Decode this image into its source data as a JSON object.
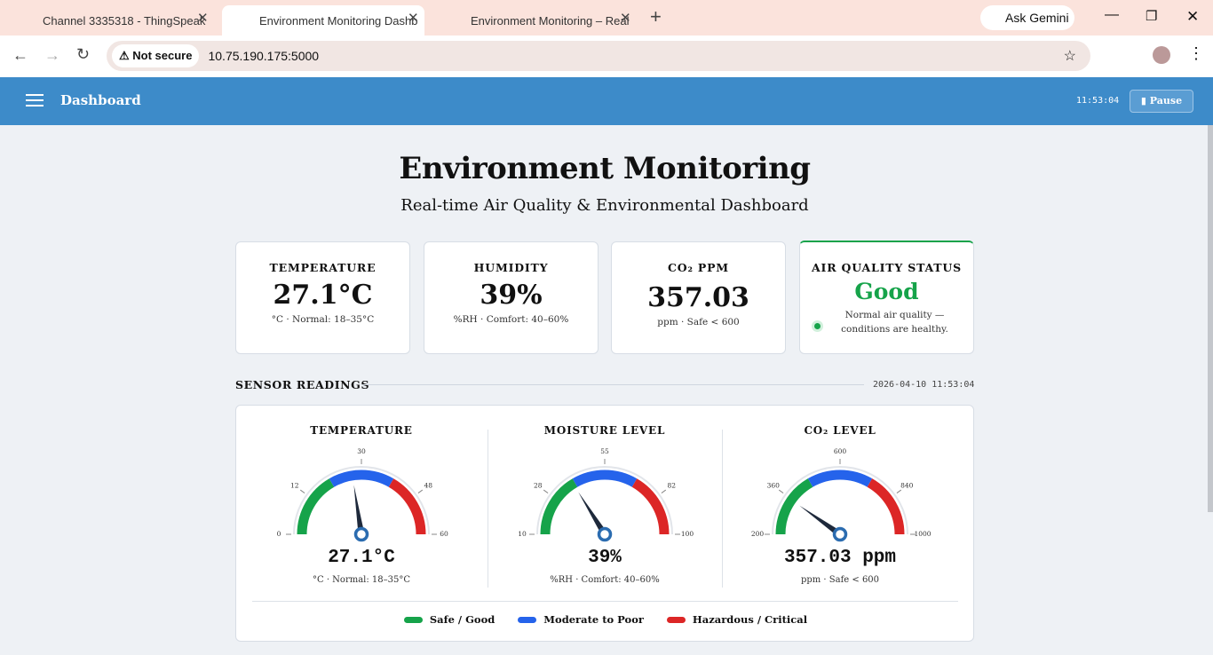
{
  "browser": {
    "tabs": [
      "Channel 3335318 - ThingSpeak",
      "Environment Monitoring Dashb",
      "Environment Monitoring – Real"
    ],
    "ask_gemini": "Ask Gemini",
    "security": "Not secure",
    "url": "10.75.190.175:5000"
  },
  "navbar": {
    "title": "Dashboard",
    "time": "11:53:04",
    "pause": "Pause"
  },
  "header": {
    "title": "Environment Monitoring",
    "subtitle": "Real-time Air Quality & Environmental Dashboard"
  },
  "cards": [
    {
      "label": "TEMPERATURE",
      "value": "27.1°C",
      "note": "°C · Normal: 18–35°C"
    },
    {
      "label": "HUMIDITY",
      "value": "39%",
      "note": "%RH · Comfort: 40–60%"
    },
    {
      "label": "CO₂ PPM",
      "value": "357.03",
      "note": "ppm · Safe < 600"
    }
  ],
  "status": {
    "label": "AIR QUALITY STATUS",
    "value": "Good",
    "note": "Normal air quality — conditions are healthy."
  },
  "section": {
    "title": "SENSOR READINGS",
    "timestamp": "2026-04-10 11:53:04"
  },
  "gauges": [
    {
      "title": "TEMPERATURE",
      "value": 27.1,
      "value_label": "27.1°C",
      "note": "°C · Normal: 18–35°C",
      "range": [
        0,
        60
      ],
      "ticks": [
        0,
        12,
        30,
        48,
        60
      ],
      "zones": [
        20,
        40
      ]
    },
    {
      "title": "MOISTURE LEVEL",
      "value": 39,
      "value_label": "39%",
      "note": "%RH · Comfort: 40–60%",
      "range": [
        10,
        100
      ],
      "ticks": [
        10,
        28,
        55,
        82,
        100
      ],
      "zones": [
        40,
        70
      ]
    },
    {
      "title": "CO₂ LEVEL",
      "value": 357.03,
      "value_label": "357.03 ppm",
      "note": "ppm · Safe < 600",
      "range": [
        200,
        1000
      ],
      "ticks": [
        200,
        360,
        600,
        840,
        1000
      ],
      "zones": [
        467,
        733
      ]
    }
  ],
  "legend": [
    {
      "name": "Safe / Good",
      "color": "#16a34a"
    },
    {
      "name": "Moderate to Poor",
      "color": "#2563eb"
    },
    {
      "name": "Hazardous / Critical",
      "color": "#dc2626"
    }
  ]
}
